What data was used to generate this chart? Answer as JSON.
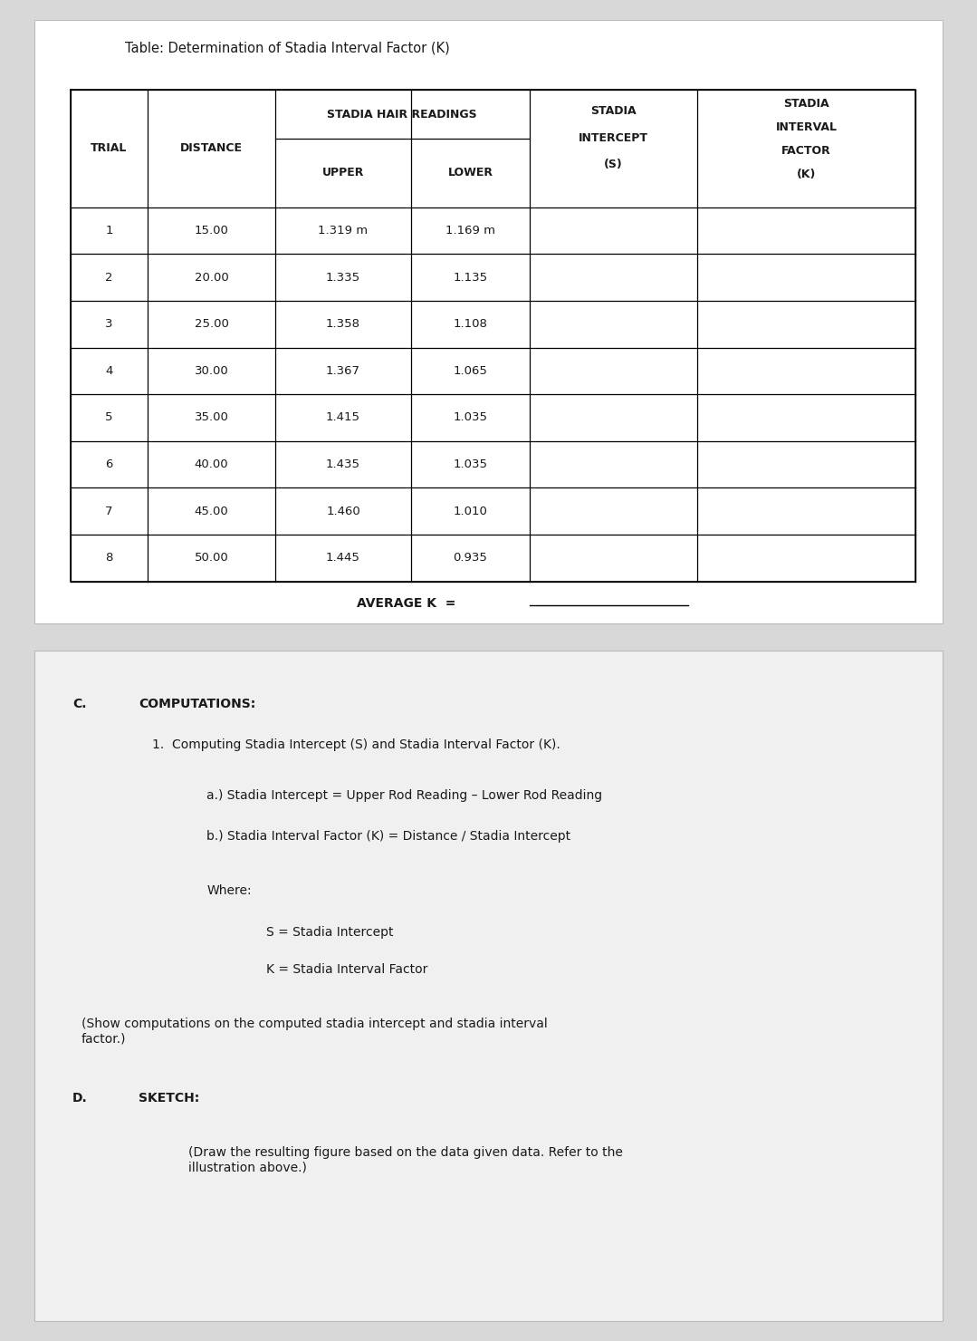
{
  "page_bg": "#d8d8d8",
  "panel1_bg": "#ffffff",
  "panel2_bg": "#f0f0f0",
  "table_title": "Table: Determination of Stadia Interval Factor (K)",
  "trials": [
    1,
    2,
    3,
    4,
    5,
    6,
    7,
    8
  ],
  "distances": [
    "15.00",
    "20.00",
    "25.00",
    "30.00",
    "35.00",
    "40.00",
    "45.00",
    "50.00"
  ],
  "upper_readings": [
    "1.319 m",
    "1.335",
    "1.358",
    "1.367",
    "1.415",
    "1.435",
    "1.460",
    "1.445"
  ],
  "lower_readings": [
    "1.169 m",
    "1.135",
    "1.108",
    "1.065",
    "1.035",
    "1.035",
    "1.010",
    "0.935"
  ],
  "average_k_label": "AVERAGE K  =",
  "section_c_label": "C.",
  "section_c_title": "COMPUTATIONS:",
  "computations_line1": "1.  Computing Stadia Intercept (S) and Stadia Interval Factor (K).",
  "computations_line2": "a.) Stadia Intercept = Upper Rod Reading – Lower Rod Reading",
  "computations_line3": "b.) Stadia Interval Factor (K) = Distance / Stadia Intercept",
  "where_label": "Where:",
  "where_s": "S = Stadia Intercept",
  "where_k": "K = Stadia Interval Factor",
  "show_computations": "(Show computations on the computed stadia intercept and stadia interval\nfactor.)",
  "section_d_label": "D.",
  "section_d_title": "SKETCH:",
  "sketch_note": "(Draw the resulting figure based on the data given data. Refer to the\nillustration above.)",
  "text_color": "#1a1a1a"
}
